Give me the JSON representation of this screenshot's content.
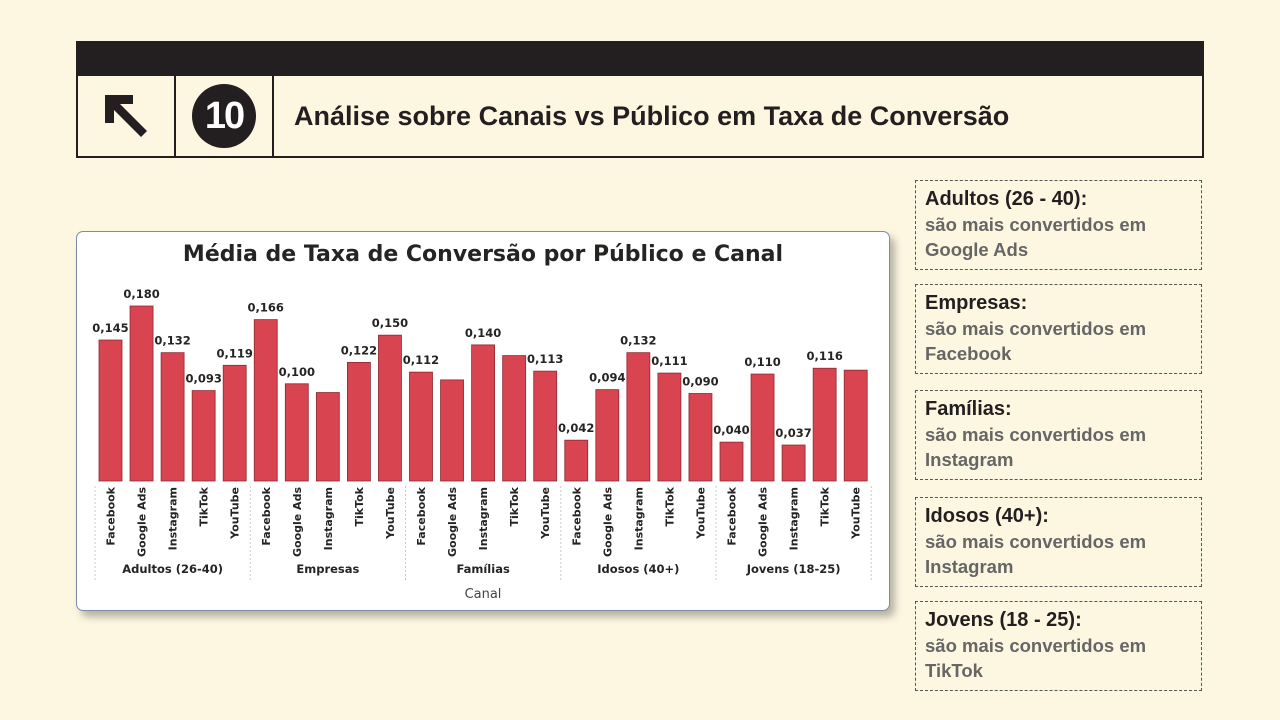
{
  "slide": {
    "number": "10",
    "title": "Análise sobre Canais vs Público em Taxa de Conversão"
  },
  "icons": {
    "corner": "arrow-up-left-icon"
  },
  "colors": {
    "bar": "#D8444F",
    "header": "#231F20",
    "background": "#FDF7E2"
  },
  "chart_data": {
    "type": "bar",
    "title": "Média de Taxa de Conversão por Público e Canal",
    "xlabel": "Canal",
    "ylabel": "",
    "ylim": [
      0,
      0.18
    ],
    "grid": false,
    "groups": [
      {
        "name": "Adultos (26-40)",
        "categories": [
          "Facebook",
          "Google Ads",
          "Instagram",
          "TikTok",
          "YouTube"
        ],
        "values": [
          0.145,
          0.18,
          0.132,
          0.093,
          0.119
        ],
        "labels": [
          "0,145",
          "0,180",
          "0,132",
          "0,093",
          "0,119"
        ]
      },
      {
        "name": "Empresas",
        "categories": [
          "Facebook",
          "Google Ads",
          "Instagram",
          "TikTok",
          "YouTube"
        ],
        "values": [
          0.166,
          0.1,
          0.091,
          0.122,
          0.15
        ],
        "labels": [
          "0,166",
          "0,100",
          "",
          "0,122",
          "0,150"
        ]
      },
      {
        "name": "Famílias",
        "categories": [
          "Facebook",
          "Google Ads",
          "Instagram",
          "TikTok",
          "YouTube"
        ],
        "values": [
          0.112,
          0.104,
          0.14,
          0.129,
          0.113
        ],
        "labels": [
          "0,112",
          "",
          "0,140",
          "",
          "0,113"
        ]
      },
      {
        "name": "Idosos (40+)",
        "categories": [
          "Facebook",
          "Google Ads",
          "Instagram",
          "TikTok",
          "YouTube"
        ],
        "values": [
          0.042,
          0.094,
          0.132,
          0.111,
          0.09
        ],
        "labels": [
          "0,042",
          "0,094",
          "0,132",
          "0,111",
          "0,090"
        ]
      },
      {
        "name": "Jovens (18-25)",
        "categories": [
          "Facebook",
          "Google Ads",
          "Instagram",
          "TikTok",
          "YouTube"
        ],
        "values": [
          0.04,
          0.11,
          0.037,
          0.116,
          0.114
        ],
        "labels": [
          "0,040",
          "0,110",
          "0,037",
          "0,116",
          ""
        ]
      }
    ]
  },
  "insights": [
    {
      "head": "Adultos (26 - 40):",
      "body": "são mais convertidos em Google Ads"
    },
    {
      "head": "Empresas:",
      "body": "são mais convertidos em Facebook"
    },
    {
      "head": "Famílias:",
      "body": "são mais convertidos em Instagram"
    },
    {
      "head": "Idosos (40+):",
      "body": "são mais convertidos em Instagram"
    },
    {
      "head": "Jovens (18 - 25):",
      "body": "são mais convertidos em TikTok"
    }
  ]
}
